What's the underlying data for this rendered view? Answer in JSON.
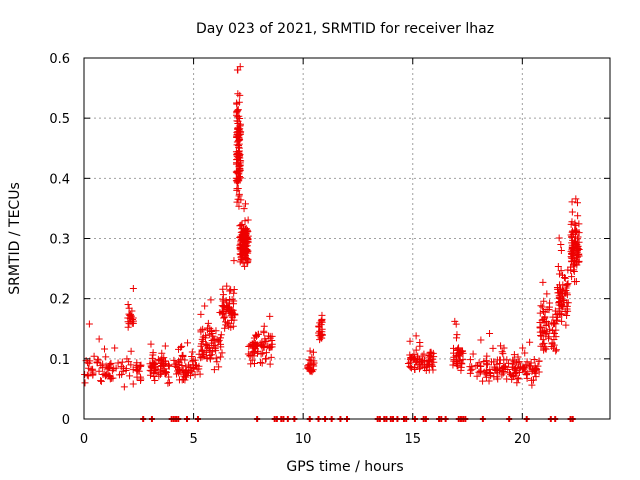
{
  "chart_data": {
    "type": "scatter",
    "title": "Day 023 of 2021, SRMTID for receiver lhaz",
    "xlabel": "GPS time / hours",
    "ylabel": "SRMTID / TECUs",
    "xlim": [
      0,
      24
    ],
    "ylim": [
      0,
      0.6
    ],
    "x_ticks": [
      0,
      5,
      10,
      15,
      20
    ],
    "x_tick_labels": [
      "0",
      "5",
      "10",
      "15",
      "20"
    ],
    "y_ticks": [
      0,
      0.1,
      0.2,
      0.3,
      0.4,
      0.5,
      0.6
    ],
    "y_tick_labels": [
      "0",
      "0.1",
      "0.2",
      "0.3",
      "0.4",
      "0.5",
      "0.6"
    ],
    "grid": true,
    "marker_color": "#ee0000",
    "series": [
      {
        "name": "SRMTID",
        "marker": "+",
        "segments": [
          {
            "x_start": 0.0,
            "x_end": 2.6,
            "base": 0.08,
            "spread": 0.035,
            "density": 85
          },
          {
            "x_start": 2.0,
            "x_end": 2.3,
            "base": 0.17,
            "spread": 0.03,
            "density": 20
          },
          {
            "x_start": 3.0,
            "x_end": 3.9,
            "base": 0.085,
            "spread": 0.03,
            "density": 60
          },
          {
            "x_start": 4.1,
            "x_end": 5.3,
            "base": 0.085,
            "spread": 0.03,
            "density": 65
          },
          {
            "x_start": 5.3,
            "x_end": 6.3,
            "base": 0.12,
            "spread": 0.05,
            "density": 70
          },
          {
            "x_start": 6.3,
            "x_end": 6.9,
            "base": 0.18,
            "spread": 0.05,
            "density": 60
          },
          {
            "x_start": 6.95,
            "x_end": 7.15,
            "base": 0.45,
            "spread": 0.12,
            "density": 120
          },
          {
            "x_start": 7.1,
            "x_end": 7.5,
            "base": 0.29,
            "spread": 0.05,
            "density": 120
          },
          {
            "x_start": 7.5,
            "x_end": 8.6,
            "base": 0.12,
            "spread": 0.045,
            "density": 75
          },
          {
            "x_start": 10.2,
            "x_end": 10.5,
            "base": 0.085,
            "spread": 0.025,
            "density": 25
          },
          {
            "x_start": 10.7,
            "x_end": 10.9,
            "base": 0.15,
            "spread": 0.03,
            "density": 25
          },
          {
            "x_start": 14.8,
            "x_end": 16.0,
            "base": 0.095,
            "spread": 0.03,
            "density": 70
          },
          {
            "x_start": 16.8,
            "x_end": 17.3,
            "base": 0.1,
            "spread": 0.04,
            "density": 40
          },
          {
            "x_start": 17.6,
            "x_end": 19.2,
            "base": 0.085,
            "spread": 0.03,
            "density": 70
          },
          {
            "x_start": 19.2,
            "x_end": 20.8,
            "base": 0.08,
            "spread": 0.03,
            "density": 75
          },
          {
            "x_start": 20.8,
            "x_end": 21.6,
            "base": 0.15,
            "spread": 0.06,
            "density": 70
          },
          {
            "x_start": 21.6,
            "x_end": 22.1,
            "base": 0.2,
            "spread": 0.06,
            "density": 65
          },
          {
            "x_start": 22.2,
            "x_end": 22.6,
            "base": 0.28,
            "spread": 0.06,
            "density": 90
          }
        ]
      },
      {
        "name": "baseline markers",
        "marker": "dash",
        "y": 0,
        "x": [
          2.7,
          3.1,
          4.0,
          4.1,
          4.2,
          4.3,
          4.7,
          5.2,
          7.9,
          8.7,
          8.8,
          9.0,
          9.1,
          9.3,
          9.6,
          10.3,
          10.7,
          11.0,
          11.3,
          11.7,
          12.0,
          13.4,
          13.5,
          13.7,
          13.8,
          14.0,
          14.1,
          14.3,
          14.6,
          14.7,
          15.1,
          15.5,
          15.6,
          16.2,
          16.3,
          16.5,
          17.1,
          17.2,
          17.3,
          17.4,
          18.2,
          19.4,
          20.2,
          21.3,
          21.5,
          22.2,
          22.3
        ]
      }
    ]
  }
}
